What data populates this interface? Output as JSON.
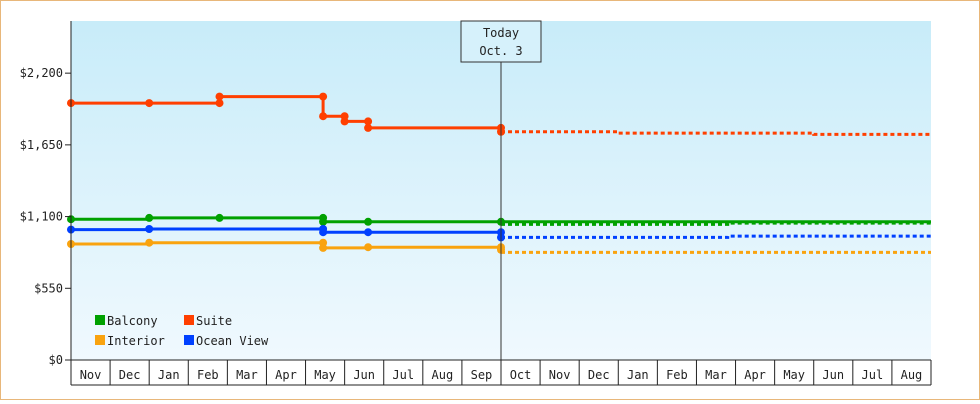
{
  "chart_data": {
    "type": "line",
    "title": "",
    "xlabel": "",
    "ylabel": "",
    "ylim": [
      0,
      2600
    ],
    "y_ticks": [
      0,
      550,
      1100,
      1650,
      2200
    ],
    "y_tick_labels": [
      "$0",
      "$550",
      "$1,100",
      "$1,650",
      "$2,200"
    ],
    "x_tick_labels": [
      "Nov",
      "Dec",
      "Jan",
      "Feb",
      "Mar",
      "Apr",
      "May",
      "Jun",
      "Jul",
      "Aug",
      "Sep",
      "Oct",
      "Nov",
      "Dec",
      "Jan",
      "Feb",
      "Mar",
      "Apr",
      "May",
      "Jun",
      "Jul",
      "Aug"
    ],
    "today": {
      "line1": "Today",
      "line2": "Oct. 3",
      "month_index": 11
    },
    "grid": false,
    "legend_position": "bottom-left",
    "background_gradient": [
      "#c8ecf9",
      "#f0f9fe"
    ],
    "series": [
      {
        "name": "Suite",
        "color": "#ff3f00",
        "history": [
          [
            0,
            1970
          ],
          [
            2,
            1970
          ],
          [
            3.8,
            1970
          ],
          [
            3.8,
            2020
          ],
          [
            6.45,
            2020
          ],
          [
            6.45,
            1870
          ],
          [
            7,
            1870
          ],
          [
            7,
            1830
          ],
          [
            7.6,
            1830
          ],
          [
            7.6,
            1780
          ],
          [
            11,
            1780
          ],
          [
            11,
            1750
          ]
        ],
        "markers": [
          [
            0,
            1970
          ],
          [
            2,
            1970
          ],
          [
            3.8,
            1970
          ],
          [
            3.8,
            2020
          ],
          [
            6.45,
            2020
          ],
          [
            6.45,
            1870
          ],
          [
            7,
            1870
          ],
          [
            7,
            1830
          ],
          [
            7.6,
            1830
          ],
          [
            7.6,
            1780
          ],
          [
            11,
            1780
          ],
          [
            11,
            1750
          ]
        ],
        "forecast": [
          [
            11,
            1750
          ],
          [
            14,
            1750
          ],
          [
            14,
            1740
          ],
          [
            19,
            1740
          ],
          [
            19,
            1730
          ],
          [
            22,
            1730
          ]
        ]
      },
      {
        "name": "Balcony",
        "color": "#00a100",
        "history": [
          [
            0,
            1080
          ],
          [
            2,
            1080
          ],
          [
            2,
            1090
          ],
          [
            6.45,
            1090
          ],
          [
            6.45,
            1060
          ],
          [
            22,
            1060
          ]
        ],
        "markers": [
          [
            0,
            1080
          ],
          [
            2,
            1090
          ],
          [
            3.8,
            1090
          ],
          [
            6.45,
            1090
          ],
          [
            6.45,
            1060
          ],
          [
            7.6,
            1060
          ],
          [
            11,
            1060
          ]
        ],
        "forecast": [
          [
            11,
            1040
          ],
          [
            16.8,
            1040
          ],
          [
            16.8,
            1050
          ],
          [
            22,
            1050
          ]
        ]
      },
      {
        "name": "Ocean View",
        "color": "#0040ff",
        "history": [
          [
            0,
            1000
          ],
          [
            2,
            1000
          ],
          [
            2,
            1005
          ],
          [
            6.45,
            1005
          ],
          [
            6.45,
            980
          ],
          [
            11,
            980
          ]
        ],
        "markers": [
          [
            0,
            1000
          ],
          [
            2,
            1005
          ],
          [
            6.45,
            1005
          ],
          [
            6.45,
            980
          ],
          [
            7.6,
            980
          ],
          [
            11,
            980
          ],
          [
            11,
            940
          ]
        ],
        "forecast": [
          [
            11,
            940
          ],
          [
            16.8,
            940
          ],
          [
            16.8,
            950
          ],
          [
            22,
            950
          ]
        ]
      },
      {
        "name": "Interior",
        "color": "#f9a30f",
        "history": [
          [
            0,
            890
          ],
          [
            2,
            890
          ],
          [
            2,
            900
          ],
          [
            6.45,
            900
          ],
          [
            6.45,
            860
          ],
          [
            7.6,
            860
          ],
          [
            7.6,
            865
          ],
          [
            11,
            865
          ],
          [
            11,
            845
          ]
        ],
        "markers": [
          [
            0,
            890
          ],
          [
            2,
            900
          ],
          [
            6.45,
            900
          ],
          [
            6.45,
            860
          ],
          [
            7.6,
            865
          ],
          [
            11,
            865
          ],
          [
            11,
            845
          ]
        ],
        "forecast": [
          [
            11,
            825
          ],
          [
            22,
            825
          ]
        ]
      }
    ],
    "legend_order": [
      "Balcony",
      "Suite",
      "Interior",
      "Ocean View"
    ]
  }
}
